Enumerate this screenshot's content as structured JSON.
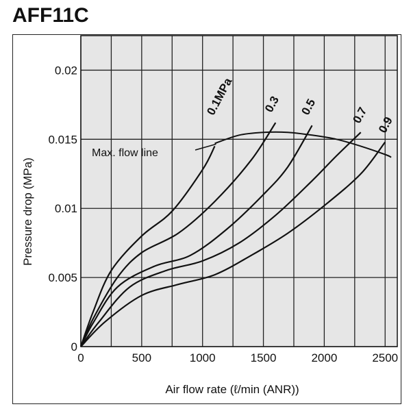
{
  "chart_data": {
    "type": "line",
    "title": "AFF11C",
    "xlabel": "Air flow rate (ℓ/min (ANR))",
    "ylabel": "Pressure drop (MPa)",
    "xlim": [
      0,
      2600
    ],
    "ylim": [
      0,
      0.0225
    ],
    "xticks": [
      0,
      500,
      1000,
      1500,
      2000,
      2500
    ],
    "xtick_labels": [
      "0",
      "500",
      "1000",
      "1500",
      "2000",
      "2500"
    ],
    "yticks": [
      0,
      0.005,
      0.01,
      0.015,
      0.02
    ],
    "ytick_labels": [
      "0",
      "0.005",
      "0.01",
      "0.015",
      "0.02"
    ],
    "grid": true,
    "background": "#e6e6e6",
    "line_color": "#111111",
    "series": [
      {
        "name": "0.1MPa",
        "x": [
          0,
          100,
          250,
          500,
          750,
          1000,
          1100
        ],
        "y": [
          0,
          0.0025,
          0.0055,
          0.008,
          0.0098,
          0.0128,
          0.0145
        ]
      },
      {
        "name": "0.3",
        "x": [
          0,
          100,
          300,
          500,
          800,
          1100,
          1400,
          1600
        ],
        "y": [
          0,
          0.002,
          0.005,
          0.0068,
          0.0082,
          0.0105,
          0.0135,
          0.0162
        ]
      },
      {
        "name": "0.5",
        "x": [
          0,
          100,
          300,
          600,
          900,
          1200,
          1500,
          1700,
          1900
        ],
        "y": [
          0,
          0.0017,
          0.0043,
          0.0058,
          0.0066,
          0.0085,
          0.011,
          0.013,
          0.016
        ]
      },
      {
        "name": "0.7",
        "x": [
          0,
          150,
          400,
          700,
          1000,
          1300,
          1600,
          1900,
          2100,
          2300
        ],
        "y": [
          0,
          0.0018,
          0.0043,
          0.0055,
          0.0062,
          0.0075,
          0.0095,
          0.012,
          0.0138,
          0.0155
        ]
      },
      {
        "name": "0.9",
        "x": [
          0,
          200,
          500,
          800,
          1100,
          1400,
          1700,
          2000,
          2300,
          2500
        ],
        "y": [
          0,
          0.0018,
          0.0037,
          0.0045,
          0.0052,
          0.0066,
          0.0082,
          0.0102,
          0.0125,
          0.0148
        ]
      }
    ],
    "max_flow_line": {
      "name": "Max. flow line",
      "x": [
        1100,
        1300,
        1500,
        1700,
        1900,
        2100,
        2300,
        2500,
        2550
      ],
      "y": [
        0.0147,
        0.0153,
        0.0155,
        0.0155,
        0.0153,
        0.015,
        0.0145,
        0.0139,
        0.0137
      ]
    }
  }
}
